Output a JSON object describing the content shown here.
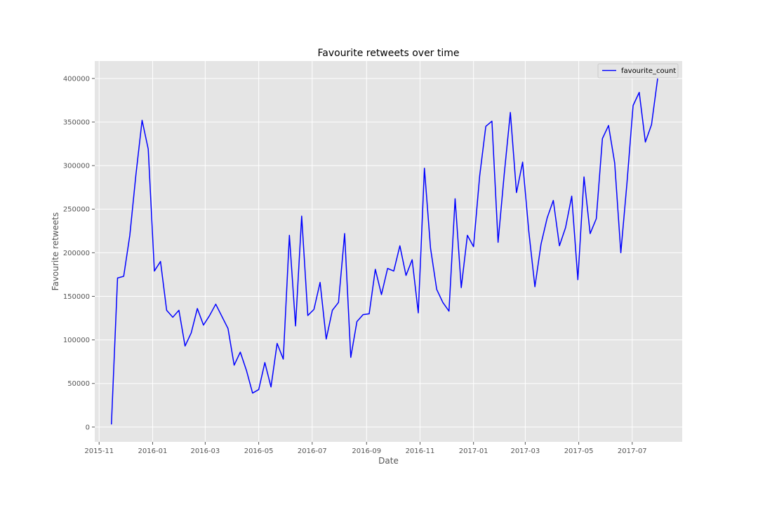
{
  "chart_data": {
    "type": "line",
    "title": "Favourite retweets over time",
    "xlabel": "Date",
    "ylabel": "Favourite retweets",
    "x_ticks": [
      "2015-11",
      "2016-01",
      "2016-03",
      "2016-05",
      "2016-07",
      "2016-09",
      "2016-11",
      "2017-01",
      "2017-03",
      "2017-05",
      "2017-07"
    ],
    "y_ticks": [
      0,
      50000,
      100000,
      150000,
      200000,
      250000,
      300000,
      350000,
      400000
    ],
    "y_tick_labels": [
      "0",
      "50000",
      "100000",
      "150000",
      "200000",
      "250000",
      "300000",
      "350000",
      "400000"
    ],
    "xlim": [
      "2015-10-27",
      "2017-08-27"
    ],
    "ylim": [
      -17000,
      420000
    ],
    "grid": true,
    "legend": "top-right",
    "series": [
      {
        "name": "favourite_count",
        "color": "#0000ff",
        "x": [
          "2015-11-15",
          "2015-11-22",
          "2015-11-29",
          "2015-12-06",
          "2015-12-13",
          "2015-12-20",
          "2015-12-27",
          "2016-01-03",
          "2016-01-10",
          "2016-01-17",
          "2016-01-24",
          "2016-01-31",
          "2016-02-07",
          "2016-02-14",
          "2016-02-21",
          "2016-02-28",
          "2016-03-06",
          "2016-03-13",
          "2016-03-20",
          "2016-03-27",
          "2016-04-03",
          "2016-04-10",
          "2016-04-17",
          "2016-04-24",
          "2016-05-01",
          "2016-05-08",
          "2016-05-15",
          "2016-05-22",
          "2016-05-29",
          "2016-06-05",
          "2016-06-12",
          "2016-06-19",
          "2016-06-26",
          "2016-07-03",
          "2016-07-10",
          "2016-07-17",
          "2016-07-24",
          "2016-07-31",
          "2016-08-07",
          "2016-08-14",
          "2016-08-21",
          "2016-08-28",
          "2016-09-04",
          "2016-09-11",
          "2016-09-18",
          "2016-09-25",
          "2016-10-02",
          "2016-10-09",
          "2016-10-16",
          "2016-10-23",
          "2016-10-30",
          "2016-11-06",
          "2016-11-13",
          "2016-11-20",
          "2016-11-27",
          "2016-12-04",
          "2016-12-11",
          "2016-12-18",
          "2016-12-25",
          "2017-01-01",
          "2017-01-08",
          "2017-01-15",
          "2017-01-22",
          "2017-01-29",
          "2017-02-05",
          "2017-02-12",
          "2017-02-19",
          "2017-02-26",
          "2017-03-05",
          "2017-03-12",
          "2017-03-19",
          "2017-03-26",
          "2017-04-02",
          "2017-04-09",
          "2017-04-16",
          "2017-04-23",
          "2017-04-30",
          "2017-05-07",
          "2017-05-14",
          "2017-05-21",
          "2017-05-28",
          "2017-06-04",
          "2017-06-11",
          "2017-06-18",
          "2017-06-25",
          "2017-07-02",
          "2017-07-09",
          "2017-07-16",
          "2017-07-23",
          "2017-07-30"
        ],
        "values": [
          3000,
          171000,
          173000,
          220000,
          290000,
          352000,
          319000,
          179000,
          190000,
          134000,
          126000,
          134000,
          93000,
          108000,
          136000,
          117000,
          128000,
          141000,
          127000,
          113000,
          71000,
          86000,
          65000,
          39000,
          43000,
          74000,
          46000,
          96000,
          78000,
          220000,
          116000,
          242000,
          128000,
          135000,
          166000,
          101000,
          134000,
          143000,
          222000,
          80000,
          121000,
          129000,
          130000,
          181000,
          152000,
          182000,
          179000,
          208000,
          174000,
          192000,
          131000,
          297000,
          205000,
          158000,
          143000,
          133000,
          262000,
          160000,
          220000,
          207000,
          288000,
          345000,
          351000,
          212000,
          290000,
          361000,
          269000,
          304000,
          225000,
          161000,
          210000,
          240000,
          260000,
          208000,
          229000,
          265000,
          169000,
          287000,
          222000,
          239000,
          331000,
          346000,
          303000,
          200000,
          280000,
          369000,
          384000,
          327000,
          347000,
          400000
        ]
      }
    ]
  }
}
